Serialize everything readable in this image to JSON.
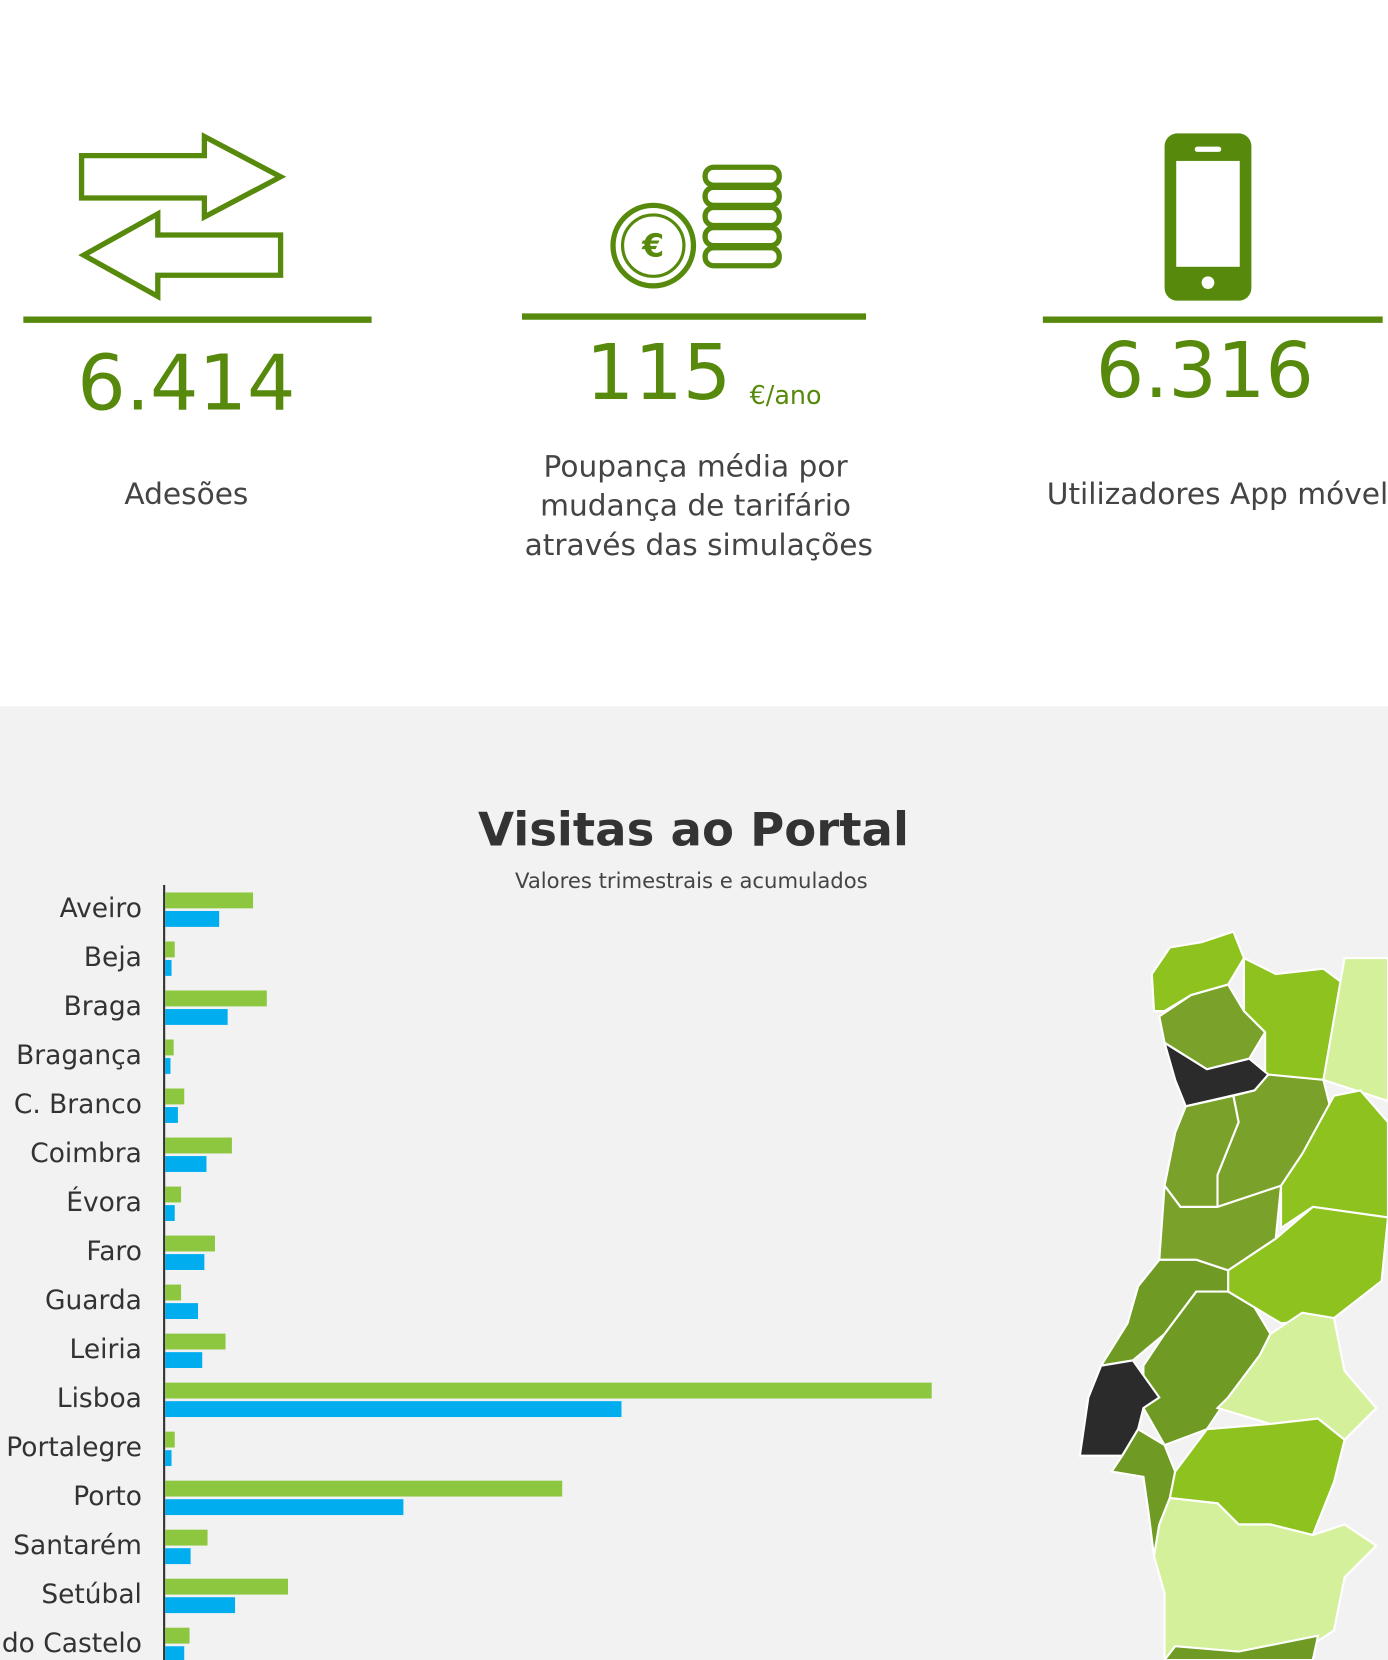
{
  "stats": [
    {
      "value": "6.414",
      "label": "Adesões"
    },
    {
      "value": "115",
      "unit": "€/ano",
      "label_lines": [
        "Poupança média por",
        "mudança de tarifário",
        "através das simulações"
      ]
    },
    {
      "value": "6.316",
      "label": "Utilizadores App móvel"
    }
  ],
  "chart_data": {
    "type": "bar",
    "orientation": "horizontal",
    "title": "Visitas ao Portal",
    "subtitle": "Valores trimestrais e acumulados",
    "categories": [
      "Aveiro",
      "Beja",
      "Braga",
      "Bragança",
      "C. Branco",
      "Coimbra",
      "Évora",
      "Faro",
      "Guarda",
      "Leiria",
      "Lisboa",
      "Portalegre",
      "Porto",
      "Santarém",
      "Setúbal",
      "Viana do Castelo"
    ],
    "series": [
      {
        "color": "#8dc63f",
        "values": [
          83,
          9,
          96,
          8,
          18,
          63,
          15,
          47,
          15,
          57,
          724,
          9,
          375,
          40,
          116,
          23
        ]
      },
      {
        "color": "#00aeef",
        "values": [
          51,
          6,
          59,
          5,
          12,
          39,
          9,
          37,
          31,
          35,
          431,
          6,
          225,
          24,
          66,
          18
        ]
      }
    ],
    "xlim": [
      0,
      1000
    ]
  }
}
